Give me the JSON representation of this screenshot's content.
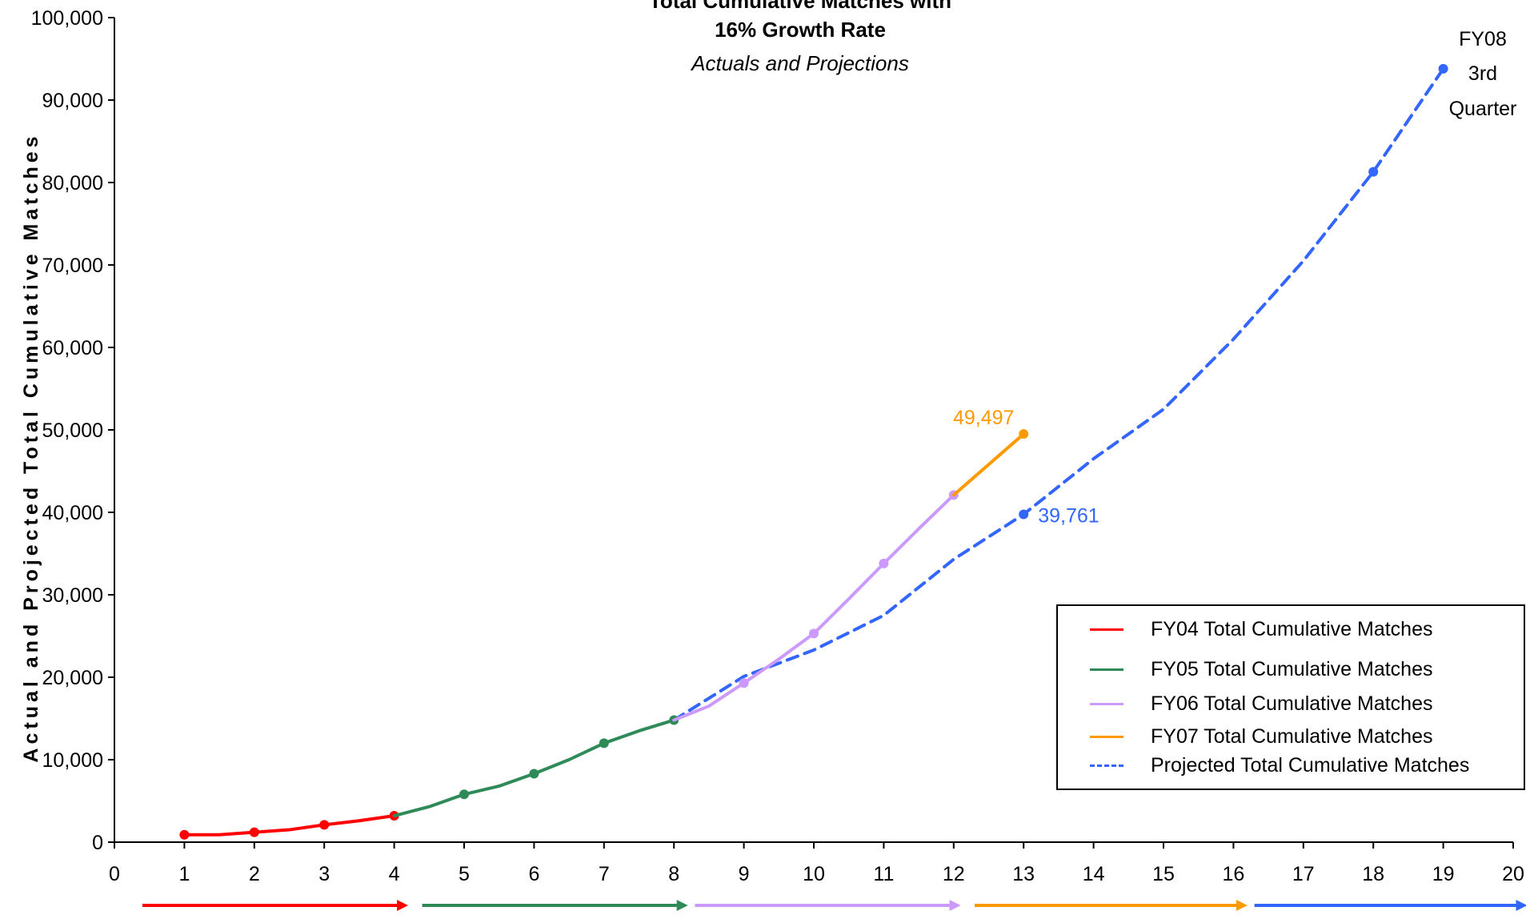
{
  "chart_data": {
    "type": "line",
    "title": "Total Cumulative Matches with",
    "subtitle": "16% Growth Rate",
    "subtitle2": "Actuals and Projections",
    "xlabel": "",
    "ylabel": "Actual and Projected Total Cumulative Matches",
    "xlim": [
      0,
      20
    ],
    "ylim": [
      0,
      100000
    ],
    "x_ticks": [
      0,
      1,
      2,
      3,
      4,
      5,
      6,
      7,
      8,
      9,
      10,
      11,
      12,
      13,
      14,
      15,
      16,
      17,
      18,
      19,
      20
    ],
    "y_ticks": [
      0,
      10000,
      20000,
      30000,
      40000,
      50000,
      60000,
      70000,
      80000,
      90000,
      100000
    ],
    "y_tick_labels": [
      "0",
      "10,000",
      "20,000",
      "30,000",
      "40,000",
      "50,000",
      "60,000",
      "70,000",
      "80,000",
      "90,000",
      "100,000"
    ],
    "grid": false,
    "legend_position": "bottom-right",
    "series": [
      {
        "name": "FY04 Total Cumulative Matches",
        "color": "#ff0000",
        "style": "solid",
        "x": [
          1,
          1.5,
          2,
          2.5,
          3,
          3.5,
          4
        ],
        "y": [
          900,
          900,
          1200,
          1500,
          2100,
          2600,
          3200
        ],
        "markers": [
          1,
          2,
          3,
          4
        ]
      },
      {
        "name": "FY05 Total Cumulative Matches",
        "color": "#2e8b57",
        "style": "solid",
        "x": [
          4,
          4.5,
          5,
          5.5,
          6,
          6.5,
          7,
          7.5,
          8
        ],
        "y": [
          3200,
          4300,
          5800,
          6800,
          8300,
          10000,
          12000,
          13500,
          14800
        ],
        "markers": [
          5,
          6,
          7,
          8
        ]
      },
      {
        "name": "FY06 Total Cumulative Matches",
        "color": "#cc99ff",
        "style": "solid",
        "x": [
          8,
          8.5,
          9,
          9.5,
          10,
          10.5,
          11,
          11.5,
          12
        ],
        "y": [
          14800,
          16500,
          19300,
          22200,
          25300,
          29500,
          33800,
          38000,
          42100
        ],
        "markers": [
          9,
          10,
          11,
          12
        ]
      },
      {
        "name": "FY07 Total Cumulative Matches",
        "color": "#ff9900",
        "style": "solid",
        "x": [
          12,
          13
        ],
        "y": [
          42100,
          49497
        ],
        "markers": [
          13
        ]
      },
      {
        "name": "Projected Total Cumulative Matches",
        "color": "#3366ff",
        "style": "dashed",
        "x": [
          8,
          9,
          10,
          11,
          12,
          13,
          14,
          15,
          16,
          17,
          18,
          19
        ],
        "y": [
          14800,
          20100,
          23300,
          27500,
          34300,
          39761,
          46500,
          52500,
          61000,
          70500,
          81300,
          93800
        ],
        "markers": [
          13,
          18,
          19
        ]
      }
    ],
    "annotations": [
      {
        "text": "49,497",
        "x": 13,
        "y": 49497,
        "color": "#ff9900"
      },
      {
        "text": "39,761",
        "x": 13,
        "y": 39761,
        "color": "#3366ff"
      },
      {
        "text": "FY08",
        "x": 19,
        "y": 93800,
        "color": "#000000"
      },
      {
        "text": "3rd",
        "x": 19,
        "y": 93800,
        "color": "#000000"
      },
      {
        "text": "Quarter",
        "x": 19,
        "y": 93800,
        "color": "#000000"
      }
    ],
    "fiscal_arrows": [
      {
        "from": 0.4,
        "to": 4.2,
        "color": "#ff0000"
      },
      {
        "from": 4.4,
        "to": 8.2,
        "color": "#2e8b57"
      },
      {
        "from": 8.3,
        "to": 12.1,
        "color": "#cc99ff"
      },
      {
        "from": 12.3,
        "to": 16.2,
        "color": "#ff9900"
      },
      {
        "from": 16.3,
        "to": 20.2,
        "color": "#3366ff"
      }
    ]
  }
}
